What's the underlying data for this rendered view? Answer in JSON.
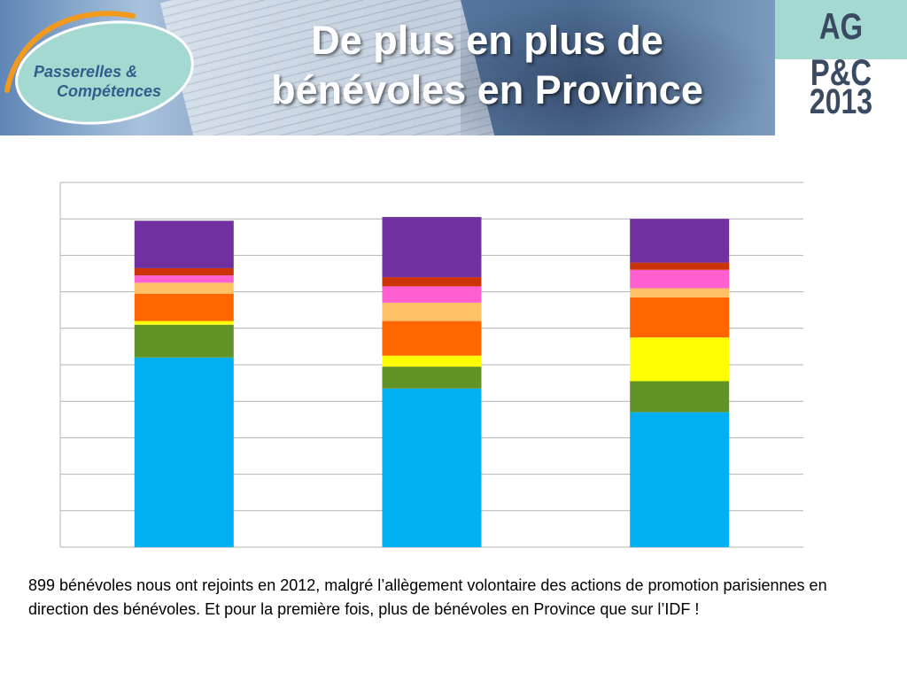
{
  "header": {
    "title": "De plus en plus de bénévoles en Province",
    "logo_line1": "Passerelles &",
    "logo_line2": "Compétences",
    "event_tag": "AG P&C",
    "event_year": "2013"
  },
  "chart_data": {
    "type": "bar",
    "stacked": true,
    "categories": [
      "",
      "",
      ""
    ],
    "ylim": [
      0,
      100
    ],
    "grid": true,
    "series": [
      {
        "color": "#00b0f0",
        "values": [
          52,
          43.5,
          37
        ]
      },
      {
        "color": "#629327",
        "values": [
          9,
          6,
          8.5
        ]
      },
      {
        "color": "#ffff00",
        "values": [
          1,
          3,
          12
        ]
      },
      {
        "color": "#ff6600",
        "values": [
          7.5,
          9.5,
          11
        ]
      },
      {
        "color": "#ffc166",
        "values": [
          3,
          5,
          2.5
        ]
      },
      {
        "color": "#ff5fd0",
        "values": [
          2,
          4.5,
          5
        ]
      },
      {
        "color": "#cc3300",
        "values": [
          2,
          2.5,
          2
        ]
      },
      {
        "color": "#7030a0",
        "values": [
          13,
          16.5,
          12
        ]
      }
    ]
  },
  "caption": "899 bénévoles nous ont rejoints en 2012, malgré l’allègement volontaire des actions de promotion parisiennes en direction des bénévoles. Et pour la première fois, plus de bénévoles en Province que sur l’IDF !"
}
